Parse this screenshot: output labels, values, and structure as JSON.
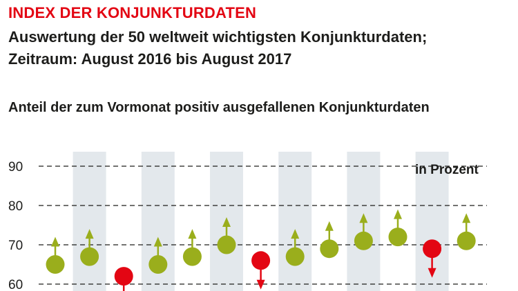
{
  "header": {
    "title": "INDEX DER KONJUNKTURDATEN",
    "subtitle_line1": "Auswertung der 50 weltweit wichtigsten Konjunkturdaten;",
    "subtitle_line2": "Zeitraum: August 2016 bis August 2017",
    "caption": "Anteil der zum Vormonat positiv ausgefallenen Konjunkturdaten"
  },
  "chart_data": {
    "type": "scatter",
    "title": "INDEX DER KONJUNKTURDATEN",
    "unit_label": "in Prozent",
    "ylim": [
      60,
      90
    ],
    "yticks": [
      60,
      70,
      80,
      90
    ],
    "y_tick_labels": [
      "60",
      "70",
      "80",
      "90"
    ],
    "grid": true,
    "series": [
      {
        "values": [
          65,
          67,
          62,
          65,
          67,
          70,
          66,
          67,
          69,
          71,
          72,
          69,
          71
        ],
        "direction": [
          "up",
          "up",
          "down",
          "up",
          "up",
          "up",
          "down",
          "up",
          "up",
          "up",
          "up",
          "down",
          "up"
        ]
      }
    ],
    "colors": {
      "up": "#9aae1c",
      "down": "#e30613",
      "band": "#e3e8ec",
      "grid": "#1d1d1b"
    }
  }
}
